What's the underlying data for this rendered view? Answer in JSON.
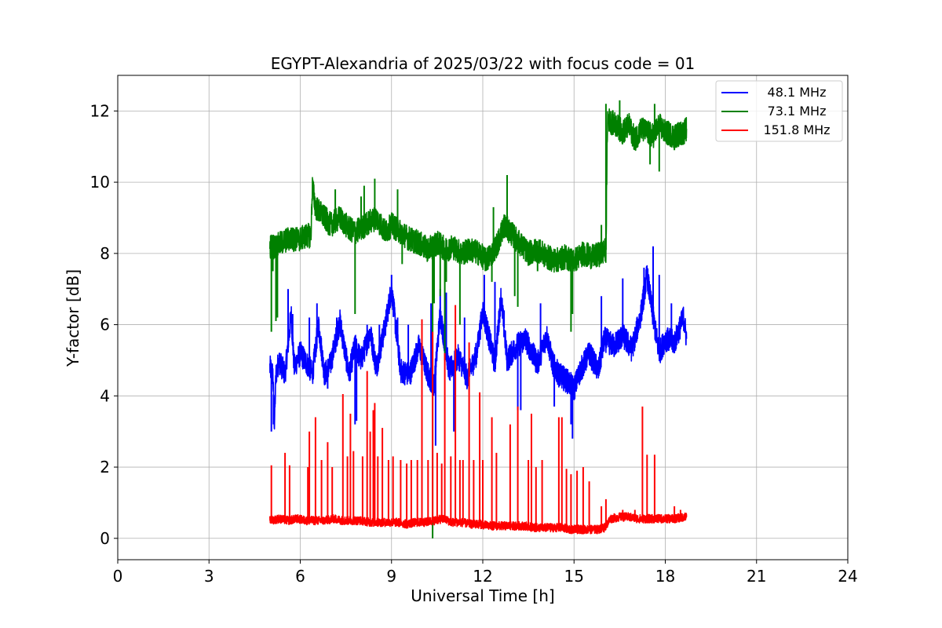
{
  "chart_data": {
    "type": "line",
    "title": "EGYPT-Alexandria of 2025/03/22 with focus code = 01",
    "xlabel": "Universal Time [h]",
    "ylabel": "Y-factor [dB]",
    "xlim": [
      0,
      24
    ],
    "ylim": [
      -0.6,
      13
    ],
    "xticks": [
      0,
      3,
      6,
      9,
      12,
      15,
      18,
      21,
      24
    ],
    "yticks": [
      0,
      2,
      4,
      6,
      8,
      10,
      12
    ],
    "grid": true,
    "legend_position": "top-right",
    "series": [
      {
        "name": "48.1 MHz",
        "color": "#0000ff",
        "x": [
          5.0,
          5.1,
          5.15,
          5.2,
          5.3,
          5.5,
          5.7,
          5.8,
          6.0,
          6.3,
          6.4,
          6.6,
          6.8,
          7.0,
          7.3,
          7.6,
          7.8,
          8.0,
          8.3,
          8.5,
          8.8,
          9.0,
          9.3,
          9.6,
          9.9,
          10.2,
          10.4,
          10.6,
          10.9,
          11.2,
          11.5,
          11.8,
          12.0,
          12.4,
          12.6,
          12.8,
          13.1,
          13.4,
          13.8,
          14.1,
          14.3,
          14.5,
          14.8,
          15.0,
          15.2,
          15.5,
          15.8,
          16.0,
          16.3,
          16.6,
          16.9,
          17.2,
          17.4,
          17.6,
          17.8,
          18.0,
          18.3,
          18.6,
          18.7
        ],
        "y": [
          4.8,
          4.6,
          3.2,
          4.6,
          5.0,
          4.6,
          6.3,
          4.8,
          5.2,
          4.8,
          4.6,
          6.0,
          4.6,
          4.9,
          6.1,
          4.6,
          5.4,
          5.0,
          5.8,
          4.8,
          6.0,
          7.0,
          4.7,
          4.6,
          5.4,
          4.6,
          4.3,
          6.3,
          4.7,
          5.1,
          4.5,
          5.2,
          6.4,
          4.9,
          6.8,
          5.0,
          5.4,
          5.6,
          4.9,
          5.7,
          4.9,
          4.6,
          4.4,
          4.2,
          4.7,
          5.2,
          4.7,
          5.6,
          5.4,
          5.7,
          5.3,
          6.3,
          7.4,
          6.2,
          5.2,
          5.6,
          5.5,
          6.2,
          5.6
        ]
      },
      {
        "name": "73.1 MHz",
        "color": "#008000",
        "x": [
          5.0,
          5.1,
          5.2,
          5.4,
          5.6,
          5.8,
          6.0,
          6.2,
          6.35,
          6.4,
          6.5,
          6.7,
          7.0,
          7.3,
          7.6,
          7.8,
          8.0,
          8.3,
          8.5,
          8.8,
          9.0,
          9.3,
          9.6,
          9.9,
          10.2,
          10.5,
          10.8,
          11.0,
          11.3,
          11.6,
          11.9,
          12.1,
          12.3,
          12.5,
          12.7,
          13.0,
          13.2,
          13.5,
          13.8,
          14.1,
          14.4,
          14.7,
          15.0,
          15.3,
          15.6,
          15.9,
          16.05,
          16.1,
          16.2,
          16.4,
          16.6,
          16.8,
          17.0,
          17.2,
          17.4,
          17.6,
          17.8,
          18.0,
          18.3,
          18.6,
          18.7
        ],
        "y": [
          8.2,
          8.2,
          8.2,
          8.3,
          8.4,
          8.4,
          8.4,
          8.5,
          8.5,
          9.9,
          9.3,
          9.1,
          8.8,
          9.0,
          8.7,
          8.6,
          8.7,
          8.9,
          9.0,
          8.6,
          8.8,
          8.6,
          8.4,
          8.3,
          8.1,
          8.3,
          8.1,
          8.2,
          8.0,
          8.1,
          8.0,
          7.8,
          8.0,
          8.3,
          8.8,
          8.5,
          8.3,
          8.0,
          8.1,
          7.9,
          7.8,
          7.9,
          7.8,
          8.0,
          7.9,
          8.0,
          8.1,
          11.8,
          11.7,
          11.6,
          11.4,
          11.6,
          11.2,
          11.5,
          11.4,
          11.3,
          11.6,
          11.4,
          11.3,
          11.4,
          11.5
        ]
      },
      {
        "name": "151.8 MHz",
        "color": "#ff0000",
        "x": [
          5.0,
          5.3,
          5.6,
          5.9,
          6.2,
          6.5,
          6.8,
          7.1,
          7.4,
          7.7,
          8.0,
          8.3,
          8.6,
          8.9,
          9.2,
          9.5,
          9.8,
          10.1,
          10.4,
          10.7,
          11.0,
          11.3,
          11.6,
          11.9,
          12.2,
          12.5,
          12.8,
          13.1,
          13.4,
          13.7,
          14.0,
          14.3,
          14.6,
          14.9,
          15.2,
          15.5,
          15.8,
          16.0,
          16.2,
          16.5,
          16.8,
          17.1,
          17.4,
          17.7,
          18.0,
          18.3,
          18.6,
          18.7
        ],
        "y": [
          0.5,
          0.55,
          0.5,
          0.55,
          0.5,
          0.5,
          0.5,
          0.55,
          0.5,
          0.5,
          0.5,
          0.45,
          0.45,
          0.45,
          0.45,
          0.4,
          0.45,
          0.45,
          0.5,
          0.55,
          0.45,
          0.45,
          0.4,
          0.4,
          0.35,
          0.35,
          0.35,
          0.35,
          0.35,
          0.3,
          0.3,
          0.3,
          0.3,
          0.25,
          0.25,
          0.25,
          0.25,
          0.3,
          0.55,
          0.6,
          0.6,
          0.55,
          0.55,
          0.55,
          0.55,
          0.55,
          0.6,
          0.6
        ]
      }
    ],
    "spikes": [
      {
        "series": "48.1 MHz",
        "x": [
          5.05,
          5.12,
          5.6,
          5.75,
          6.3,
          6.55,
          6.9,
          7.2,
          7.8,
          7.85,
          8.2,
          8.6,
          9.0,
          9.2,
          9.55,
          10.3,
          10.45,
          10.6,
          10.8,
          11.05,
          11.4,
          12.05,
          12.4,
          12.7,
          13.15,
          13.25,
          13.9,
          14.35,
          14.9,
          14.95,
          15.9,
          16.6,
          17.3,
          17.5,
          17.6,
          17.8,
          18.2
        ],
        "y": [
          3.0,
          3.2,
          7.0,
          6.3,
          6.2,
          6.6,
          4.2,
          6.2,
          3.2,
          3.3,
          6.0,
          6.0,
          7.4,
          6.2,
          6.0,
          6.6,
          2.6,
          7.0,
          6.9,
          3.0,
          6.2,
          7.4,
          7.2,
          6.4,
          3.6,
          3.6,
          6.6,
          3.7,
          3.2,
          2.8,
          6.8,
          7.3,
          7.6,
          7.0,
          8.2,
          7.4,
          6.6
        ]
      },
      {
        "series": "73.1 MHz",
        "x": [
          5.05,
          5.1,
          5.2,
          5.25,
          7.15,
          7.8,
          8.0,
          8.1,
          8.45,
          9.2,
          9.35,
          10.35,
          10.4,
          10.6,
          10.75,
          10.8,
          11.25,
          12.3,
          12.35,
          12.8,
          13.05,
          13.15,
          13.8,
          14.9,
          14.95,
          15.9,
          16.05,
          16.5,
          17.0,
          17.5,
          17.65,
          17.8,
          18.3
        ],
        "y": [
          5.8,
          7.5,
          6.1,
          6.2,
          9.8,
          6.3,
          9.6,
          9.9,
          10.1,
          9.8,
          7.7,
          0.0,
          6.6,
          6.8,
          5.0,
          7.2,
          6.0,
          7.2,
          9.3,
          10.2,
          6.8,
          6.5,
          7.5,
          5.8,
          6.3,
          8.8,
          12.2,
          12.3,
          10.9,
          10.5,
          12.2,
          10.3,
          10.9
        ]
      },
      {
        "series": "151.8 MHz",
        "x": [
          5.05,
          5.5,
          5.65,
          6.25,
          6.3,
          6.5,
          6.7,
          6.9,
          7.05,
          7.4,
          7.55,
          7.65,
          7.75,
          8.05,
          8.2,
          8.3,
          8.4,
          8.45,
          8.55,
          8.7,
          8.9,
          9.05,
          9.3,
          9.5,
          9.65,
          9.85,
          10.0,
          10.2,
          10.35,
          10.5,
          10.65,
          10.75,
          10.95,
          11.1,
          11.25,
          11.35,
          11.55,
          11.7,
          11.9,
          12.0,
          12.3,
          12.45,
          12.9,
          13.15,
          13.5,
          13.6,
          13.75,
          13.95,
          14.5,
          14.6,
          14.75,
          14.9,
          15.1,
          15.3,
          15.5,
          15.9,
          16.05,
          16.6,
          17.0,
          17.25,
          17.4,
          17.65,
          18.3,
          18.5
        ],
        "y": [
          2.05,
          2.4,
          2.05,
          2.0,
          3.0,
          3.4,
          2.2,
          2.7,
          2.0,
          4.05,
          2.3,
          3.5,
          2.45,
          2.3,
          4.7,
          3.0,
          3.6,
          3.8,
          2.3,
          3.1,
          2.2,
          2.3,
          2.2,
          2.1,
          2.2,
          2.2,
          6.15,
          2.2,
          5.8,
          2.4,
          2.1,
          5.2,
          2.3,
          6.55,
          2.2,
          2.2,
          5.5,
          2.2,
          4.1,
          2.2,
          3.4,
          2.4,
          3.2,
          3.7,
          2.2,
          3.5,
          2.0,
          2.2,
          3.4,
          3.4,
          1.95,
          1.8,
          1.9,
          2.0,
          1.6,
          0.9,
          1.1,
          0.8,
          0.8,
          3.7,
          2.35,
          2.35,
          0.9,
          0.8
        ]
      }
    ]
  }
}
